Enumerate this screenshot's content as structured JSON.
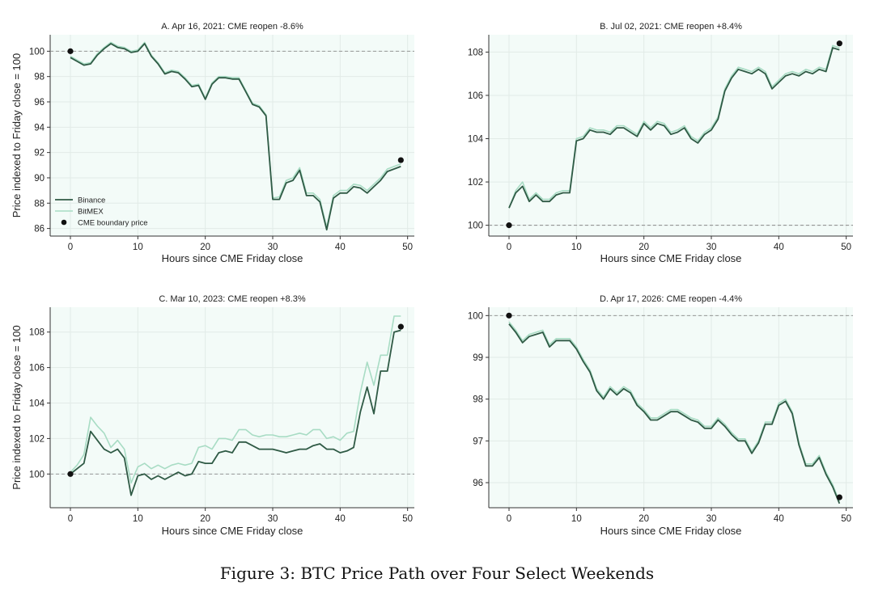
{
  "caption": "Figure 3: BTC Price Path over Four Select Weekends",
  "colors": {
    "binance": "#2f5a45",
    "bitmex": "#a8dcc4",
    "plot_bg": "#f3fbf8",
    "reference": "#8a8a8a",
    "marker": "#111111"
  },
  "legend": {
    "binance": "Binance",
    "bitmex": "BitMEX",
    "cme": "CME boundary price"
  },
  "chart_data": [
    {
      "type": "line",
      "title": "A. Apr 16, 2021: CME reopen -8.6%",
      "xlabel": "Hours since CME Friday close",
      "ylabel": "Price indexed to Friday close = 100",
      "xlim": [
        -3,
        51
      ],
      "ylim": [
        85.4,
        101.3
      ],
      "xticks": [
        0,
        10,
        20,
        30,
        40,
        50
      ],
      "yticks": [
        86,
        88,
        90,
        92,
        94,
        96,
        98,
        100
      ],
      "xtick_labels": [
        "0",
        "10",
        "20",
        "30",
        "40",
        "50"
      ],
      "ytick_labels": [
        "86",
        "88",
        "90",
        "92",
        "94",
        "96",
        "98",
        "100"
      ],
      "reference_y": 100,
      "grid": true,
      "legend_position": "lower-left",
      "cme_points": [
        {
          "x": 0,
          "y": 100
        },
        {
          "x": 49,
          "y": 91.4
        }
      ],
      "series": [
        {
          "name": "Binance",
          "x": [
            0,
            1,
            2,
            3,
            4,
            5,
            6,
            7,
            8,
            9,
            10,
            11,
            12,
            13,
            14,
            15,
            16,
            17,
            18,
            19,
            20,
            21,
            22,
            23,
            24,
            25,
            26,
            27,
            28,
            29,
            30,
            31,
            32,
            33,
            34,
            35,
            36,
            37,
            38,
            39,
            40,
            41,
            42,
            43,
            44,
            45,
            46,
            47,
            48,
            49
          ],
          "y": [
            99.5,
            99.2,
            98.9,
            99.0,
            99.7,
            100.2,
            100.6,
            100.3,
            100.2,
            99.9,
            100.0,
            100.6,
            99.6,
            99.0,
            98.2,
            98.4,
            98.3,
            97.8,
            97.2,
            97.3,
            96.2,
            97.4,
            97.9,
            97.9,
            97.8,
            97.8,
            96.8,
            95.8,
            95.6,
            94.9,
            88.3,
            88.3,
            89.6,
            89.8,
            90.6,
            88.6,
            88.6,
            88.1,
            85.9,
            88.4,
            88.8,
            88.8,
            89.3,
            89.2,
            88.8,
            89.3,
            89.8,
            90.5,
            90.7,
            90.9
          ]
        },
        {
          "name": "BitMEX",
          "x": [
            0,
            1,
            2,
            3,
            4,
            5,
            6,
            7,
            8,
            9,
            10,
            11,
            12,
            13,
            14,
            15,
            16,
            17,
            18,
            19,
            20,
            21,
            22,
            23,
            24,
            25,
            26,
            27,
            28,
            29,
            30,
            31,
            32,
            33,
            34,
            35,
            36,
            37,
            38,
            39,
            40,
            41,
            42,
            43,
            44,
            45,
            46,
            47,
            48,
            49
          ],
          "y": [
            99.6,
            99.3,
            99.0,
            99.1,
            99.8,
            100.3,
            100.7,
            100.4,
            100.3,
            100.0,
            100.1,
            100.7,
            99.7,
            99.1,
            98.3,
            98.5,
            98.4,
            97.9,
            97.3,
            97.4,
            96.3,
            97.5,
            98.0,
            98.0,
            97.9,
            97.9,
            96.9,
            95.9,
            95.7,
            95.0,
            88.4,
            88.5,
            89.8,
            90.0,
            90.8,
            88.8,
            88.8,
            88.3,
            86.1,
            88.6,
            89.0,
            89.0,
            89.5,
            89.4,
            89.0,
            89.5,
            90.0,
            90.7,
            90.9,
            91.1
          ]
        }
      ]
    },
    {
      "type": "line",
      "title": "B. Jul 02, 2021: CME reopen +8.4%",
      "xlabel": "Hours since CME Friday close",
      "ylabel": "",
      "xlim": [
        -3,
        51
      ],
      "ylim": [
        99.5,
        108.8
      ],
      "xticks": [
        0,
        10,
        20,
        30,
        40,
        50
      ],
      "yticks": [
        100,
        102,
        104,
        106,
        108
      ],
      "xtick_labels": [
        "0",
        "10",
        "20",
        "30",
        "40",
        "50"
      ],
      "ytick_labels": [
        "100",
        "102",
        "104",
        "106",
        "108"
      ],
      "reference_y": 100,
      "grid": true,
      "cme_points": [
        {
          "x": 0,
          "y": 100
        },
        {
          "x": 49,
          "y": 108.4
        }
      ],
      "series": [
        {
          "name": "Binance",
          "x": [
            0,
            1,
            2,
            3,
            4,
            5,
            6,
            7,
            8,
            9,
            10,
            11,
            12,
            13,
            14,
            15,
            16,
            17,
            18,
            19,
            20,
            21,
            22,
            23,
            24,
            25,
            26,
            27,
            28,
            29,
            30,
            31,
            32,
            33,
            34,
            35,
            36,
            37,
            38,
            39,
            40,
            41,
            42,
            43,
            44,
            45,
            46,
            47,
            48,
            49
          ],
          "y": [
            100.8,
            101.5,
            101.8,
            101.1,
            101.4,
            101.1,
            101.1,
            101.4,
            101.5,
            101.5,
            103.9,
            104.0,
            104.4,
            104.3,
            104.3,
            104.2,
            104.5,
            104.5,
            104.3,
            104.1,
            104.7,
            104.4,
            104.7,
            104.6,
            104.2,
            104.3,
            104.5,
            104.0,
            103.8,
            104.2,
            104.4,
            104.9,
            106.2,
            106.8,
            107.2,
            107.1,
            107.0,
            107.2,
            107.0,
            106.3,
            106.6,
            106.9,
            107.0,
            106.9,
            107.1,
            107.0,
            107.2,
            107.1,
            108.2,
            108.1
          ]
        },
        {
          "name": "BitMEX",
          "x": [
            0,
            1,
            2,
            3,
            4,
            5,
            6,
            7,
            8,
            9,
            10,
            11,
            12,
            13,
            14,
            15,
            16,
            17,
            18,
            19,
            20,
            21,
            22,
            23,
            24,
            25,
            26,
            27,
            28,
            29,
            30,
            31,
            32,
            33,
            34,
            35,
            36,
            37,
            38,
            39,
            40,
            41,
            42,
            43,
            44,
            45,
            46,
            47,
            48,
            49
          ],
          "y": [
            100.8,
            101.6,
            102.0,
            101.2,
            101.5,
            101.2,
            101.2,
            101.5,
            101.6,
            101.6,
            104.0,
            104.1,
            104.5,
            104.4,
            104.4,
            104.3,
            104.6,
            104.6,
            104.4,
            104.2,
            104.8,
            104.5,
            104.8,
            104.7,
            104.3,
            104.4,
            104.6,
            104.1,
            103.9,
            104.3,
            104.5,
            105.0,
            106.3,
            106.9,
            107.3,
            107.2,
            107.1,
            107.3,
            107.1,
            106.4,
            106.7,
            107.0,
            107.1,
            107.0,
            107.2,
            107.1,
            107.3,
            107.2,
            108.3,
            108.2
          ]
        }
      ]
    },
    {
      "type": "line",
      "title": "C. Mar 10, 2023: CME reopen +8.3%",
      "xlabel": "Hours since CME Friday close",
      "ylabel": "Price indexed to Friday close = 100",
      "xlim": [
        -3,
        51
      ],
      "ylim": [
        98.1,
        109.4
      ],
      "xticks": [
        0,
        10,
        20,
        30,
        40,
        50
      ],
      "yticks": [
        100,
        102,
        104,
        106,
        108
      ],
      "xtick_labels": [
        "0",
        "10",
        "20",
        "30",
        "40",
        "50"
      ],
      "ytick_labels": [
        "100",
        "102",
        "104",
        "106",
        "108"
      ],
      "reference_y": 100,
      "grid": true,
      "cme_points": [
        {
          "x": 0,
          "y": 100
        },
        {
          "x": 49,
          "y": 108.3
        }
      ],
      "series": [
        {
          "name": "Binance",
          "x": [
            0,
            1,
            2,
            3,
            4,
            5,
            6,
            7,
            8,
            9,
            10,
            11,
            12,
            13,
            14,
            15,
            16,
            17,
            18,
            19,
            20,
            21,
            22,
            23,
            24,
            25,
            26,
            27,
            28,
            29,
            30,
            31,
            32,
            33,
            34,
            35,
            36,
            37,
            38,
            39,
            40,
            41,
            42,
            43,
            44,
            45,
            46,
            47,
            48,
            49
          ],
          "y": [
            100.0,
            100.3,
            100.6,
            102.4,
            101.9,
            101.4,
            101.2,
            101.4,
            100.9,
            98.8,
            99.9,
            100.0,
            99.7,
            99.9,
            99.7,
            99.9,
            100.1,
            99.9,
            100.0,
            100.7,
            100.6,
            100.6,
            101.2,
            101.3,
            101.2,
            101.8,
            101.8,
            101.6,
            101.4,
            101.4,
            101.4,
            101.3,
            101.2,
            101.3,
            101.4,
            101.4,
            101.6,
            101.7,
            101.4,
            101.4,
            101.2,
            101.3,
            101.5,
            103.5,
            104.9,
            103.4,
            105.8,
            105.8,
            108.0,
            108.1
          ]
        },
        {
          "name": "BitMEX",
          "x": [
            0,
            1,
            2,
            3,
            4,
            5,
            6,
            7,
            8,
            9,
            10,
            11,
            12,
            13,
            14,
            15,
            16,
            17,
            18,
            19,
            20,
            21,
            22,
            23,
            24,
            25,
            26,
            27,
            28,
            29,
            30,
            31,
            32,
            33,
            34,
            35,
            36,
            37,
            38,
            39,
            40,
            41,
            42,
            43,
            44,
            45,
            46,
            47,
            48,
            49
          ],
          "y": [
            100.1,
            100.5,
            101.1,
            103.2,
            102.7,
            102.3,
            101.5,
            101.9,
            101.4,
            99.5,
            100.4,
            100.6,
            100.3,
            100.5,
            100.3,
            100.5,
            100.6,
            100.5,
            100.6,
            101.5,
            101.6,
            101.4,
            102.0,
            102.0,
            101.9,
            102.5,
            102.5,
            102.2,
            102.1,
            102.2,
            102.2,
            102.1,
            102.1,
            102.2,
            102.3,
            102.2,
            102.5,
            102.5,
            102.0,
            102.1,
            101.9,
            102.3,
            102.4,
            104.6,
            106.3,
            105.0,
            106.7,
            106.7,
            108.9,
            108.9
          ]
        }
      ]
    },
    {
      "type": "line",
      "title": "D. Apr 17, 2026: CME reopen -4.4%",
      "xlabel": "Hours since CME Friday close",
      "ylabel": "",
      "xlim": [
        -3,
        51
      ],
      "ylim": [
        95.4,
        100.2
      ],
      "xticks": [
        0,
        10,
        20,
        30,
        40,
        50
      ],
      "yticks": [
        96,
        97,
        98,
        99,
        100
      ],
      "xtick_labels": [
        "0",
        "10",
        "20",
        "30",
        "40",
        "50"
      ],
      "ytick_labels": [
        "96",
        "97",
        "98",
        "99",
        "100"
      ],
      "reference_y": 100,
      "grid": true,
      "cme_points": [
        {
          "x": 0,
          "y": 100
        },
        {
          "x": 49,
          "y": 95.65
        }
      ],
      "series": [
        {
          "name": "Binance",
          "x": [
            0,
            1,
            2,
            3,
            4,
            5,
            6,
            7,
            8,
            9,
            10,
            11,
            12,
            13,
            14,
            15,
            16,
            17,
            18,
            19,
            20,
            21,
            22,
            23,
            24,
            25,
            26,
            27,
            28,
            29,
            30,
            31,
            32,
            33,
            34,
            35,
            36,
            37,
            38,
            39,
            40,
            41,
            42,
            43,
            44,
            45,
            46,
            47,
            48,
            49
          ],
          "y": [
            99.8,
            99.6,
            99.35,
            99.5,
            99.55,
            99.6,
            99.25,
            99.4,
            99.4,
            99.4,
            99.2,
            98.9,
            98.65,
            98.2,
            98.0,
            98.25,
            98.1,
            98.25,
            98.15,
            97.85,
            97.7,
            97.5,
            97.5,
            97.6,
            97.7,
            97.7,
            97.6,
            97.5,
            97.45,
            97.3,
            97.3,
            97.5,
            97.35,
            97.15,
            97.0,
            97.0,
            96.7,
            96.95,
            97.4,
            97.4,
            97.85,
            97.95,
            97.65,
            96.9,
            96.4,
            96.4,
            96.6,
            96.2,
            95.9,
            95.5
          ]
        },
        {
          "name": "BitMEX",
          "x": [
            0,
            1,
            2,
            3,
            4,
            5,
            6,
            7,
            8,
            9,
            10,
            11,
            12,
            13,
            14,
            15,
            16,
            17,
            18,
            19,
            20,
            21,
            22,
            23,
            24,
            25,
            26,
            27,
            28,
            29,
            30,
            31,
            32,
            33,
            34,
            35,
            36,
            37,
            38,
            39,
            40,
            41,
            42,
            43,
            44,
            45,
            46,
            47,
            48,
            49
          ],
          "y": [
            99.85,
            99.65,
            99.4,
            99.55,
            99.6,
            99.65,
            99.3,
            99.45,
            99.45,
            99.45,
            99.25,
            98.95,
            98.7,
            98.25,
            98.05,
            98.3,
            98.15,
            98.3,
            98.2,
            97.9,
            97.75,
            97.55,
            97.55,
            97.65,
            97.75,
            97.75,
            97.65,
            97.55,
            97.5,
            97.35,
            97.35,
            97.55,
            97.4,
            97.2,
            97.05,
            97.05,
            96.75,
            97.0,
            97.45,
            97.45,
            97.9,
            98.0,
            97.7,
            96.95,
            96.45,
            96.45,
            96.65,
            96.25,
            95.95,
            95.55
          ]
        }
      ]
    }
  ]
}
